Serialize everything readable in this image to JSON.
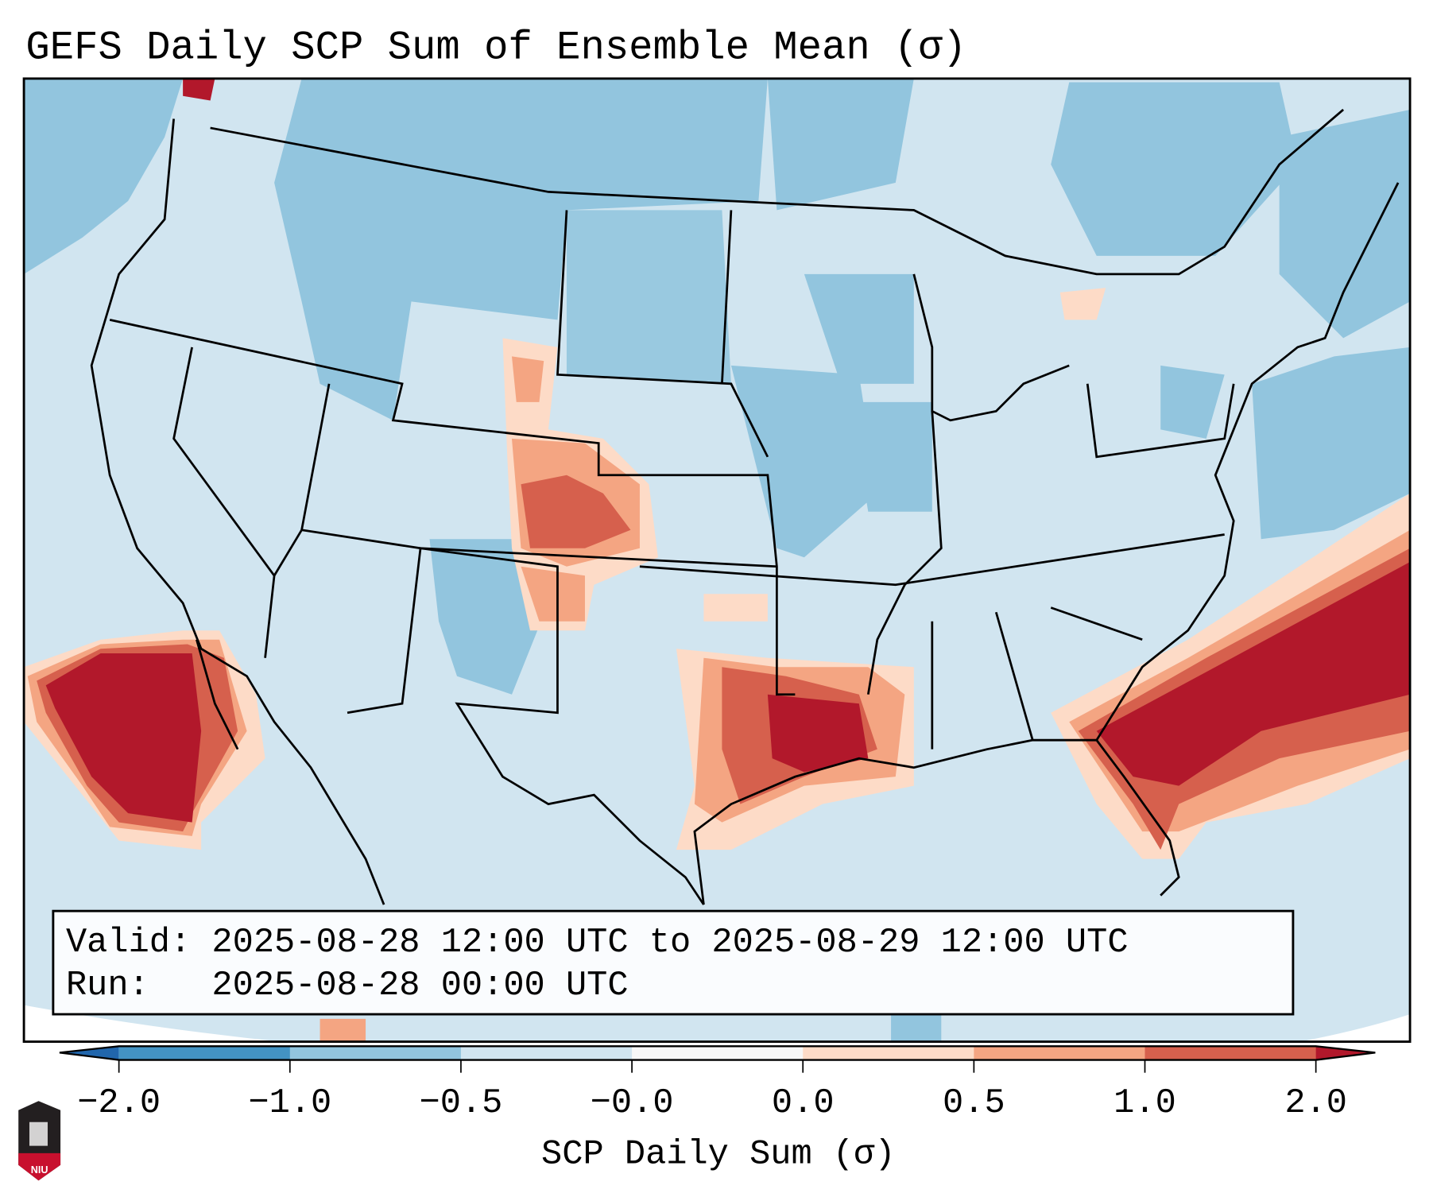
{
  "title": "GEFS Daily SCP Sum of Ensemble Mean (σ)",
  "info_box": {
    "valid_line": "Valid: 2025-08-28 12:00 UTC to 2025-08-29 12:00 UTC",
    "run_line": "Run:   2025-08-28 00:00 UTC"
  },
  "colorbar": {
    "label": "SCP Daily Sum (σ)",
    "ticks": [
      "−2.0",
      "−1.0",
      "−0.5",
      "−0.0",
      "0.0",
      "0.5",
      "1.0",
      "2.0"
    ],
    "colors": [
      "#2166ac",
      "#4393c3",
      "#92c5de",
      "#d1e5f0",
      "#f7f7f7",
      "#fddbc7",
      "#f4a582",
      "#d6604d",
      "#b2182b"
    ],
    "extend": "both"
  },
  "logo": {
    "text": "NIU"
  }
}
